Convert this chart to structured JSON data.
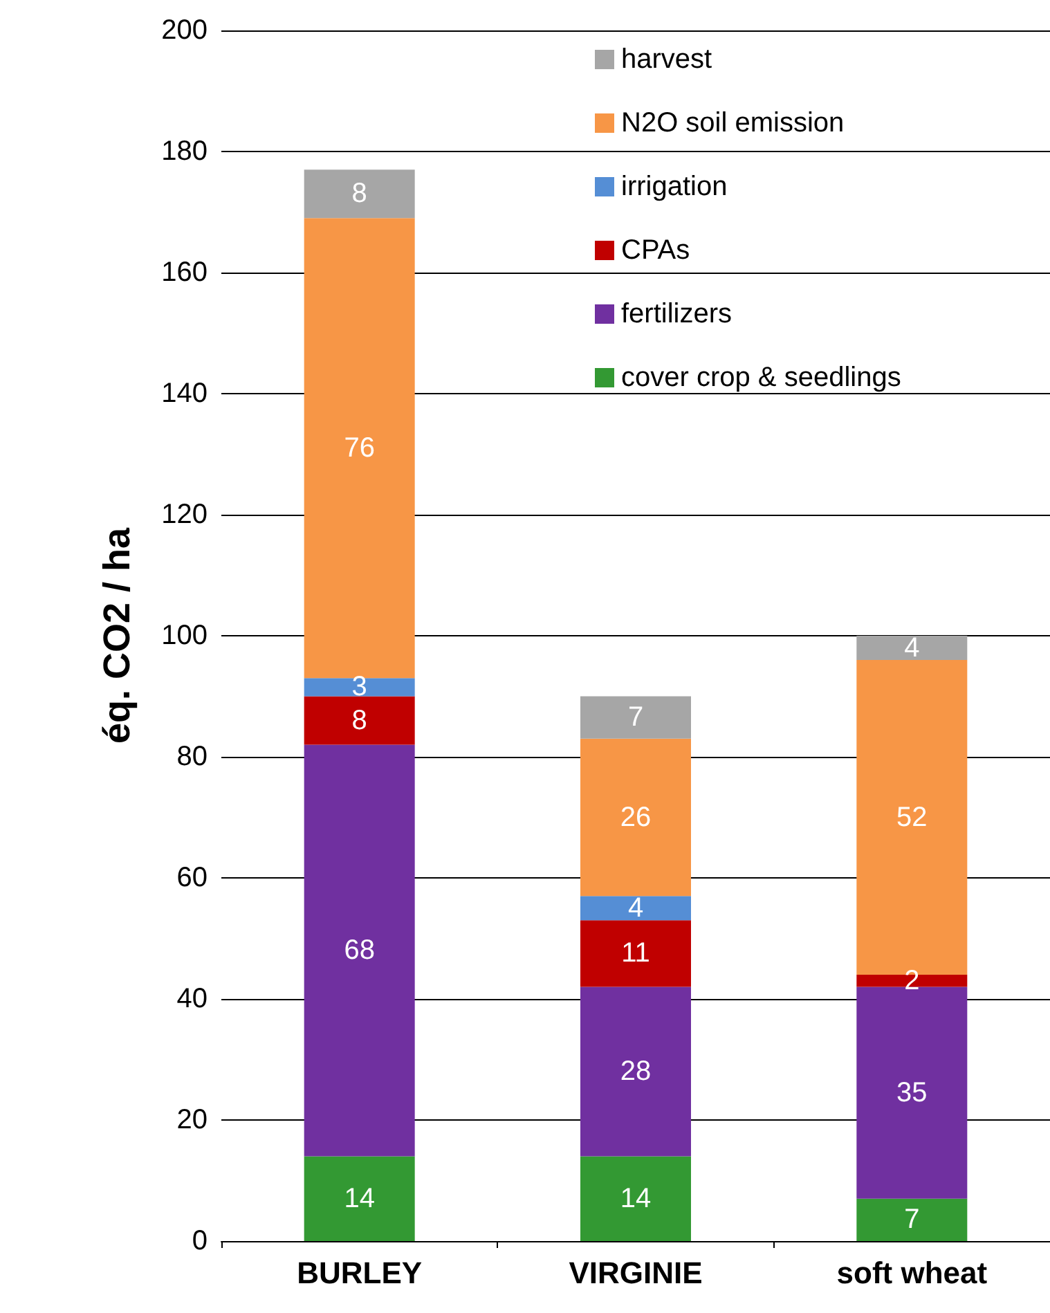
{
  "chart_data": {
    "type": "bar",
    "stacked": true,
    "ylabel": "éq. CO2 / ha",
    "categories": [
      "BURLEY",
      "VIRGINIE",
      "soft wheat"
    ],
    "series": [
      {
        "name": "cover crop & seedlings",
        "color": "#339933",
        "values": [
          14,
          14,
          7
        ]
      },
      {
        "name": "fertilizers",
        "color": "#7030a0",
        "values": [
          68,
          28,
          35
        ]
      },
      {
        "name": "CPAs",
        "color": "#c00000",
        "values": [
          8,
          11,
          2
        ]
      },
      {
        "name": "irrigation",
        "color": "#558ed5",
        "values": [
          3,
          4,
          null
        ]
      },
      {
        "name": "N2O soil emission",
        "color": "#f79646",
        "values": [
          76,
          26,
          52
        ]
      },
      {
        "name": "harvest",
        "color": "#a6a6a6",
        "values": [
          8,
          7,
          4
        ]
      }
    ],
    "ylim": [
      0,
      200
    ],
    "yticks": [
      0,
      20,
      40,
      60,
      80,
      100,
      120,
      140,
      160,
      180,
      200
    ],
    "grid": "y",
    "legend": "top right",
    "data_labels": true
  }
}
